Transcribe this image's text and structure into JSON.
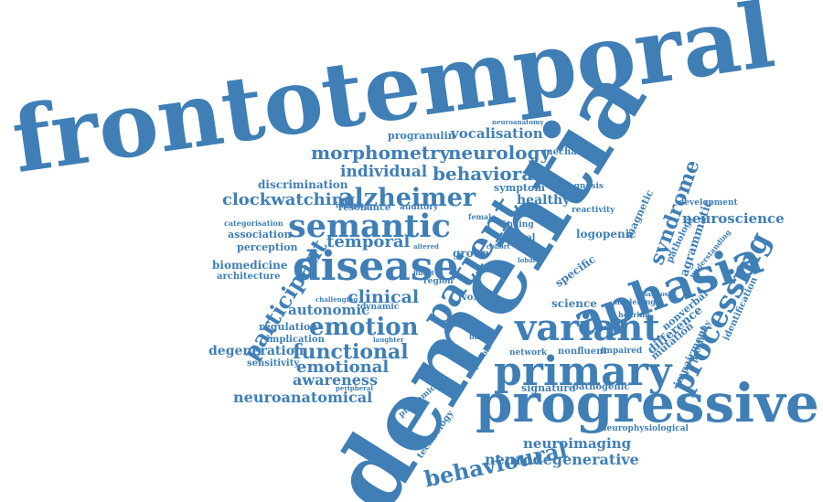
{
  "style": {
    "word_color": "#3f7fb6",
    "background": "#ffffff"
  },
  "words": [
    "frontotemporal",
    "dementia",
    "progressive",
    "aphasia",
    "primary",
    "variant",
    "disease",
    "patient",
    "semantic",
    "processing",
    "alzheimer",
    "emotion",
    "participant",
    "behavioural",
    "functional",
    "neuroanatomical",
    "syndrome",
    "morphometry",
    "neurology",
    "behavioral",
    "clockwatching",
    "individual",
    "clinical",
    "temporal",
    "emotional",
    "awareness",
    "neurodegenerative",
    "neuroimaging",
    "vocalisation",
    "progranulin",
    "neuroscience",
    "agrammatic",
    "autonomic",
    "degeneration",
    "biomedicine",
    "architecture",
    "regulation",
    "implication",
    "sensitivity",
    "association",
    "perception",
    "categorisation",
    "discrimination",
    "resonance",
    "auditory",
    "symptom",
    "healthy",
    "diagnosis",
    "magnetic",
    "development",
    "logopenic",
    "pathology",
    "understanding",
    "identification",
    "difference",
    "nonverbal",
    "mutation",
    "impairment",
    "proximity",
    "science",
    "specific",
    "network",
    "nonfluent",
    "impaired",
    "signature",
    "pathogenic",
    "phonemic",
    "technology",
    "neurophysiological",
    "reactivity",
    "control",
    "group",
    "voxel",
    "region",
    "dynamic",
    "imaging",
    "finding",
    "mechanism",
    "neuroanatomy",
    "phobic",
    "modelling",
    "hearing",
    "diagnostic",
    "based",
    "female",
    "cohort",
    "fluent",
    "altered",
    "laughter",
    "challenging",
    "peripheral",
    "lobar"
  ]
}
